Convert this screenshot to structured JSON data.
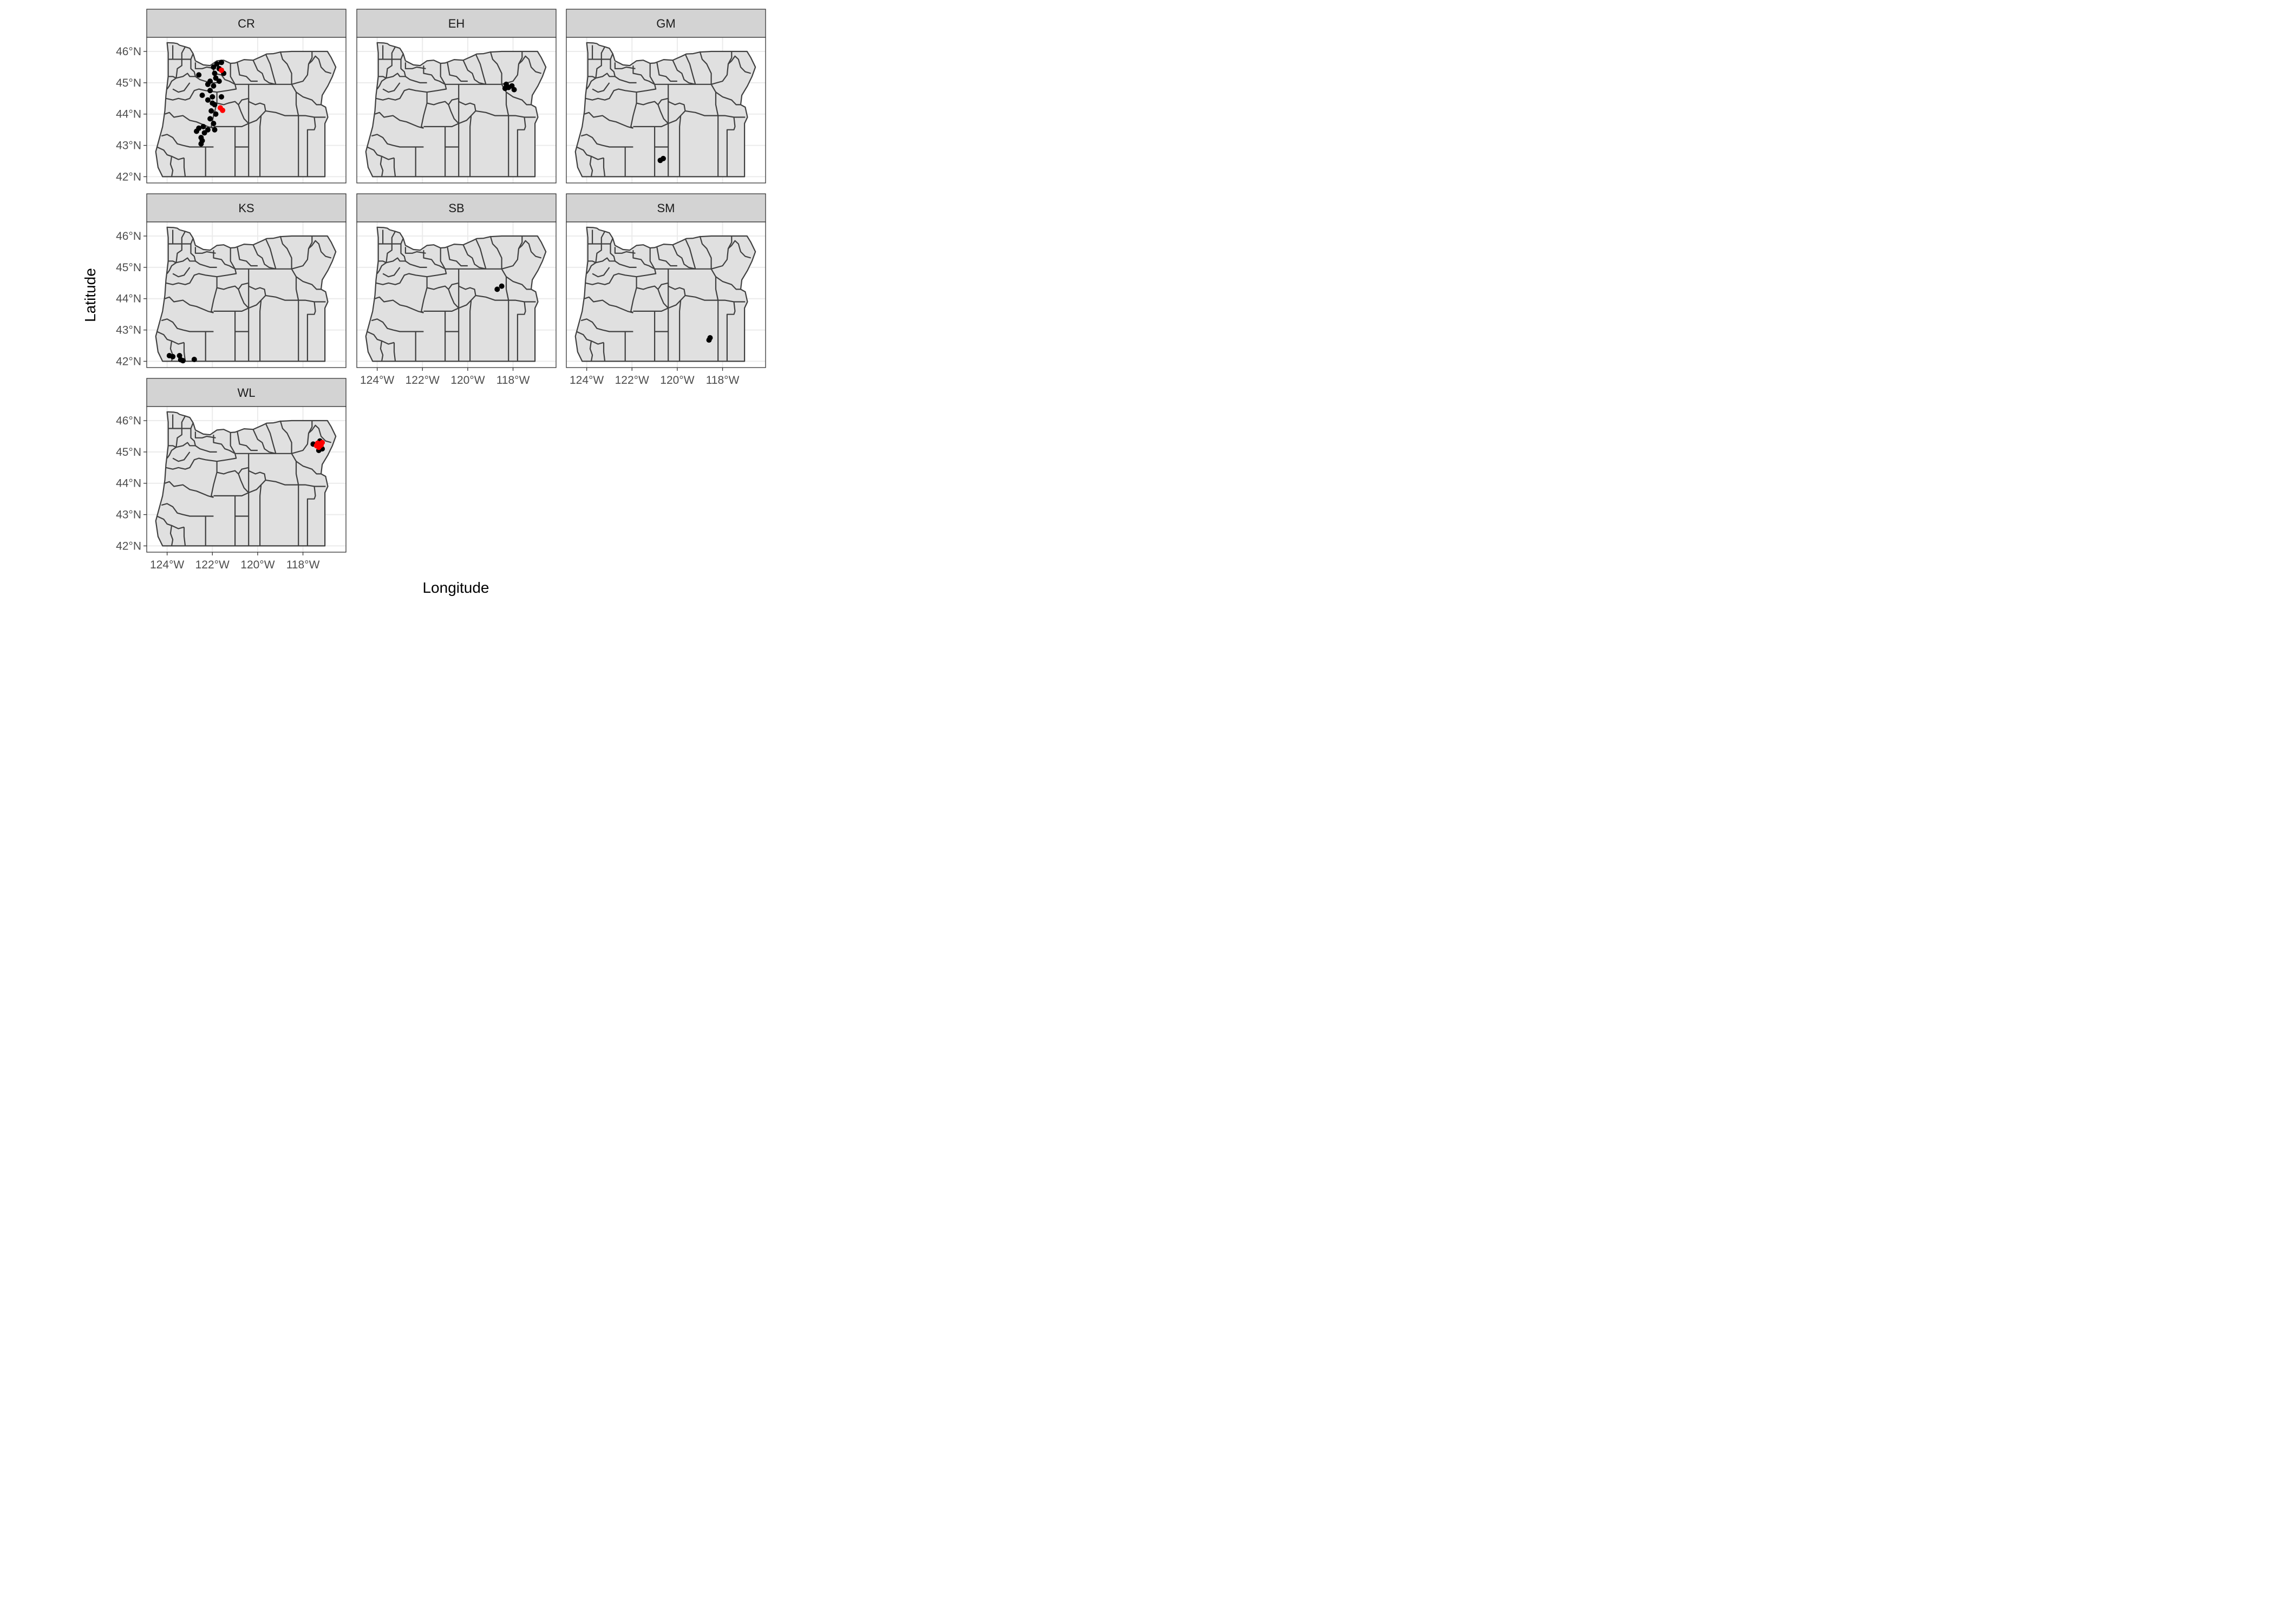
{
  "figure": {
    "x_title": "Longitude",
    "y_title": "Latitude",
    "x_ticks": [
      {
        "value": -124,
        "label": "124°W"
      },
      {
        "value": -122,
        "label": "122°W"
      },
      {
        "value": -120,
        "label": "120°W"
      },
      {
        "value": -118,
        "label": "118°W"
      }
    ],
    "y_ticks": [
      {
        "value": 46,
        "label": "46°N"
      },
      {
        "value": 45,
        "label": "45°N"
      },
      {
        "value": 44,
        "label": "44°N"
      },
      {
        "value": 43,
        "label": "43°N"
      },
      {
        "value": 42,
        "label": "42°N"
      }
    ],
    "xlim": [
      -124.9,
      -116.1
    ],
    "ylim": [
      41.8,
      46.45
    ],
    "colors": {
      "land": "#e0e0e0",
      "county_border": "#404040",
      "gridline": "#ebebeb",
      "strip_bg": "#d3d3d3",
      "panel_border": "#333333",
      "point_default": "#000000",
      "point_highlight": "#ff0000"
    }
  },
  "chart_data": {
    "type": "scatter",
    "facets": [
      {
        "name": "CR",
        "points": [
          [
            -121.8,
            45.6,
            0
          ],
          [
            -121.6,
            45.65,
            0
          ],
          [
            -121.95,
            45.5,
            0
          ],
          [
            -121.7,
            45.45,
            0
          ],
          [
            -121.9,
            45.3,
            0
          ],
          [
            -121.5,
            45.3,
            0
          ],
          [
            -122.6,
            45.25,
            0
          ],
          [
            -121.85,
            45.15,
            0
          ],
          [
            -122.1,
            45.05,
            0
          ],
          [
            -121.7,
            45.05,
            0
          ],
          [
            -122.2,
            44.95,
            0
          ],
          [
            -121.95,
            44.9,
            0
          ],
          [
            -122.1,
            44.75,
            0
          ],
          [
            -122.45,
            44.6,
            0
          ],
          [
            -122.0,
            44.55,
            0
          ],
          [
            -121.6,
            44.55,
            0
          ],
          [
            -122.2,
            44.45,
            0
          ],
          [
            -122.0,
            44.35,
            0
          ],
          [
            -121.9,
            44.3,
            0
          ],
          [
            -122.05,
            44.1,
            0
          ],
          [
            -121.85,
            44.0,
            0
          ],
          [
            -122.1,
            43.85,
            0
          ],
          [
            -121.95,
            43.7,
            0
          ],
          [
            -122.4,
            43.6,
            0
          ],
          [
            -122.6,
            43.55,
            0
          ],
          [
            -122.2,
            43.5,
            0
          ],
          [
            -121.9,
            43.5,
            0
          ],
          [
            -122.7,
            43.45,
            0
          ],
          [
            -122.35,
            43.4,
            0
          ],
          [
            -122.5,
            43.25,
            0
          ],
          [
            -122.45,
            43.15,
            0
          ],
          [
            -122.5,
            43.05,
            0
          ],
          [
            -121.6,
            45.4,
            1
          ],
          [
            -121.65,
            44.2,
            1
          ],
          [
            -121.55,
            44.12,
            1
          ]
        ]
      },
      {
        "name": "EH",
        "points": [
          [
            -118.3,
            44.95,
            0
          ],
          [
            -118.05,
            44.9,
            0
          ],
          [
            -118.35,
            44.82,
            0
          ],
          [
            -118.2,
            44.85,
            0
          ],
          [
            -117.95,
            44.78,
            0
          ]
        ]
      },
      {
        "name": "GM",
        "points": [
          [
            -120.75,
            42.52,
            0
          ],
          [
            -120.62,
            42.58,
            0
          ]
        ]
      },
      {
        "name": "KS",
        "points": [
          [
            -123.9,
            42.18,
            0
          ],
          [
            -123.75,
            42.15,
            0
          ],
          [
            -123.45,
            42.18,
            0
          ],
          [
            -123.4,
            42.05,
            0
          ],
          [
            -123.3,
            42.02,
            0
          ],
          [
            -122.8,
            42.06,
            0
          ]
        ]
      },
      {
        "name": "SB",
        "points": [
          [
            -118.7,
            44.3,
            0
          ],
          [
            -118.5,
            44.4,
            0
          ]
        ]
      },
      {
        "name": "SM",
        "points": [
          [
            -118.6,
            42.68,
            0
          ],
          [
            -118.55,
            42.75,
            0
          ]
        ]
      },
      {
        "name": "WL",
        "points": [
          [
            -117.55,
            45.25,
            0
          ],
          [
            -117.25,
            45.35,
            0
          ],
          [
            -117.15,
            45.1,
            0
          ],
          [
            -117.3,
            45.05,
            0
          ],
          [
            -117.35,
            45.28,
            1
          ],
          [
            -117.2,
            45.22,
            1
          ],
          [
            -117.3,
            45.15,
            1
          ],
          [
            -117.15,
            45.3,
            1
          ],
          [
            -117.4,
            45.2,
            1
          ]
        ]
      }
    ]
  }
}
